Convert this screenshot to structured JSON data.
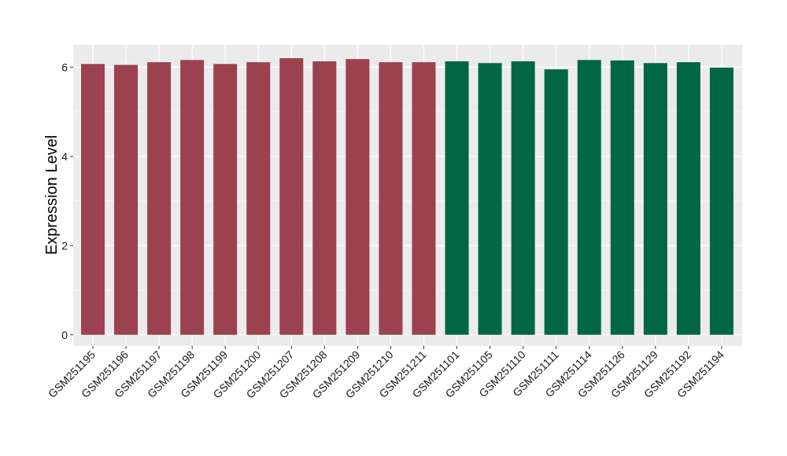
{
  "chart_data": {
    "type": "bar",
    "title": "",
    "xlabel": "",
    "ylabel": "Expression Level",
    "ylim": [
      -0.25,
      6.5
    ],
    "yticks": [
      0,
      2,
      4,
      6
    ],
    "grid": true,
    "legend": "none",
    "categories": [
      "GSM251195",
      "GSM251196",
      "GSM251197",
      "GSM251198",
      "GSM251199",
      "GSM251200",
      "GSM251207",
      "GSM251208",
      "GSM251209",
      "GSM251210",
      "GSM251211",
      "GSM251101",
      "GSM251105",
      "GSM251110",
      "GSM251111",
      "GSM251114",
      "GSM251126",
      "GSM251129",
      "GSM251192",
      "GSM251194"
    ],
    "values": [
      6.07,
      6.05,
      6.11,
      6.16,
      6.07,
      6.11,
      6.2,
      6.13,
      6.18,
      6.11,
      6.11,
      6.13,
      6.09,
      6.13,
      5.95,
      6.16,
      6.15,
      6.09,
      6.11,
      5.99
    ],
    "group_colors": [
      "#9b4150",
      "#9b4150",
      "#9b4150",
      "#9b4150",
      "#9b4150",
      "#9b4150",
      "#9b4150",
      "#9b4150",
      "#9b4150",
      "#9b4150",
      "#9b4150",
      "#006644",
      "#006644",
      "#006644",
      "#006644",
      "#006644",
      "#006644",
      "#006644",
      "#006644",
      "#006644"
    ],
    "panel_background": "#ebebeb",
    "gridline_color": "#ffffff"
  }
}
